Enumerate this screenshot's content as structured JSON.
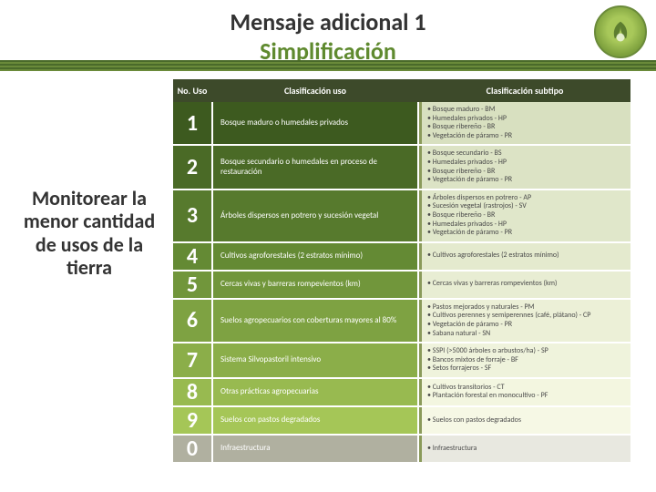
{
  "header": {
    "line1": "Mensaje adicional 1",
    "line2": "Simplificación"
  },
  "sidebar": {
    "text": "Monitorear la menor cantidad de usos de la tierra"
  },
  "table": {
    "headers": {
      "num": "No. Uso",
      "uso": "Clasificación uso",
      "sub": "Clasificación subtipo"
    },
    "colors": {
      "shades": [
        "#3d5a1f",
        "#4a6a26",
        "#577a2d",
        "#648a34",
        "#71963b",
        "#7ea242",
        "#8bae49",
        "#98ba50",
        "#a5c657",
        "#b0b0a0"
      ],
      "sub_bg": [
        "#d8e0c0",
        "#dce3c5",
        "#e0e7ca",
        "#e4eace",
        "#e8edd3",
        "#ecf0d7",
        "#eff3dc",
        "#f3f6e0",
        "#f6f8e5",
        "#e8e8e0"
      ]
    },
    "rows": [
      {
        "n": "1",
        "uso": "Bosque maduro o humedales privados",
        "sub": [
          "• Bosque maduro - BM",
          "• Humedales privados - HP",
          "• Bosque ribereño - BR",
          "• Vegetación de páramo - PR"
        ]
      },
      {
        "n": "2",
        "uso": "Bosque secundario o humedales en proceso de restauración",
        "sub": [
          "• Bosque secundario - BS",
          "• Humedales privados - HP",
          "• Bosque ribereño - BR",
          "• Vegetación de páramo - PR"
        ]
      },
      {
        "n": "3",
        "uso": "Árboles dispersos en potrero y sucesión vegetal",
        "sub": [
          "• Árboles dispersos en potrero - AP",
          "• Sucesión vegetal (rastrojos) - SV",
          "• Bosque ribereño - BR",
          "• Humedales privados - HP",
          "• Vegetación de páramo - PR"
        ]
      },
      {
        "n": "4",
        "uso": "Cultivos agroforestales (2 estratos mínimo)",
        "sub": [
          "• Cultivos agroforestales (2 estratos mínimo)"
        ]
      },
      {
        "n": "5",
        "uso": "Cercas vivas y barreras rompevientos (km)",
        "sub": [
          "• Cercas vivas y barreras rompevientos (km)"
        ]
      },
      {
        "n": "6",
        "uso": "Suelos agropecuarios con coberturas mayores al 80%",
        "sub": [
          "• Pastos mejorados y naturales - PM",
          "• Cultivos perennes y semiperennes (café, plátano) - CP",
          "• Vegetación de páramo - PR",
          "• Sabana natural - SN"
        ]
      },
      {
        "n": "7",
        "uso": "Sistema Silvopastoril intensivo",
        "sub": [
          "• SSPI (>5000 árboles o arbustos/ha) - SP",
          "• Bancos mixtos de forraje - BF",
          "• Setos forrajeros - SF"
        ]
      },
      {
        "n": "8",
        "uso": "Otras prácticas agropecuarias",
        "sub": [
          "• Cultivos transitorios - CT",
          "• Plantación forestal en monocultivo - PF"
        ]
      },
      {
        "n": "9",
        "uso": "Suelos con pastos degradados",
        "sub": [
          "• Suelos con pastos degradados"
        ]
      },
      {
        "n": "0",
        "uso": "Infraestructura",
        "sub": [
          "• Infraestructura"
        ]
      }
    ]
  }
}
